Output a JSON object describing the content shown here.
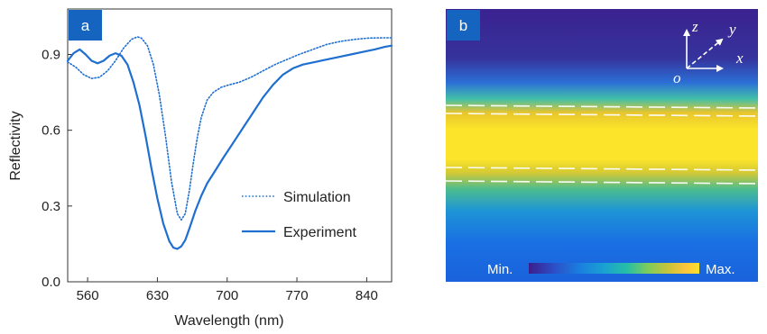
{
  "panel_a": {
    "label": "a",
    "label_bg": "#1565c0",
    "line_color": "#1f6fd1",
    "legend": {
      "simulation": "Simulation",
      "experiment": "Experiment"
    }
  },
  "panel_b": {
    "label": "b",
    "colorbar_min": "Min.",
    "colorbar_max": "Max.",
    "axes": {
      "z": "z",
      "y": "y",
      "x": "x",
      "origin": "o"
    },
    "colormap": [
      "#3b1e8c",
      "#2c4fc7",
      "#1a7fe0",
      "#1aa3cf",
      "#27bfa4",
      "#7ecc5a",
      "#c9c43a",
      "#ffc43a",
      "#f8e12a"
    ]
  },
  "chart_data": {
    "type": "line",
    "xlabel": "Wavelength (nm)",
    "ylabel": "Reflectivity",
    "xlim": [
      540,
      865
    ],
    "ylim": [
      0,
      1.08
    ],
    "xticks": [
      560,
      630,
      700,
      770,
      840
    ],
    "yticks": [
      0.0,
      0.3,
      0.6,
      0.9
    ],
    "ytick_labels": [
      "0.0",
      "0.3",
      "0.6",
      "0.9"
    ],
    "series": [
      {
        "name": "Simulation",
        "style": "dotted",
        "x": [
          540,
          548,
          556,
          564,
          572,
          580,
          588,
          596,
          604,
          610,
          614,
          620,
          626,
          632,
          638,
          644,
          650,
          654,
          658,
          662,
          666,
          670,
          674,
          680,
          686,
          694,
          702,
          712,
          724,
          736,
          748,
          760,
          772,
          786,
          800,
          814,
          828,
          842,
          856,
          865
        ],
        "y": [
          0.87,
          0.85,
          0.82,
          0.805,
          0.81,
          0.835,
          0.875,
          0.925,
          0.96,
          0.97,
          0.965,
          0.935,
          0.86,
          0.74,
          0.58,
          0.4,
          0.27,
          0.245,
          0.27,
          0.36,
          0.47,
          0.57,
          0.65,
          0.72,
          0.75,
          0.77,
          0.78,
          0.79,
          0.81,
          0.835,
          0.86,
          0.88,
          0.9,
          0.92,
          0.94,
          0.952,
          0.96,
          0.965,
          0.966,
          0.966
        ]
      },
      {
        "name": "Experiment",
        "style": "solid",
        "x": [
          540,
          546,
          552,
          558,
          564,
          570,
          576,
          582,
          588,
          594,
          600,
          606,
          612,
          618,
          624,
          630,
          636,
          642,
          646,
          650,
          654,
          658,
          662,
          668,
          674,
          680,
          688,
          696,
          706,
          716,
          726,
          736,
          746,
          756,
          766,
          776,
          788,
          800,
          812,
          824,
          836,
          848,
          858,
          865
        ],
        "y": [
          0.875,
          0.905,
          0.92,
          0.9,
          0.875,
          0.865,
          0.875,
          0.895,
          0.905,
          0.895,
          0.86,
          0.79,
          0.7,
          0.58,
          0.45,
          0.33,
          0.23,
          0.16,
          0.135,
          0.13,
          0.14,
          0.165,
          0.21,
          0.28,
          0.34,
          0.39,
          0.44,
          0.49,
          0.55,
          0.61,
          0.67,
          0.73,
          0.78,
          0.82,
          0.845,
          0.86,
          0.87,
          0.88,
          0.89,
          0.9,
          0.91,
          0.92,
          0.93,
          0.935
        ]
      }
    ]
  }
}
